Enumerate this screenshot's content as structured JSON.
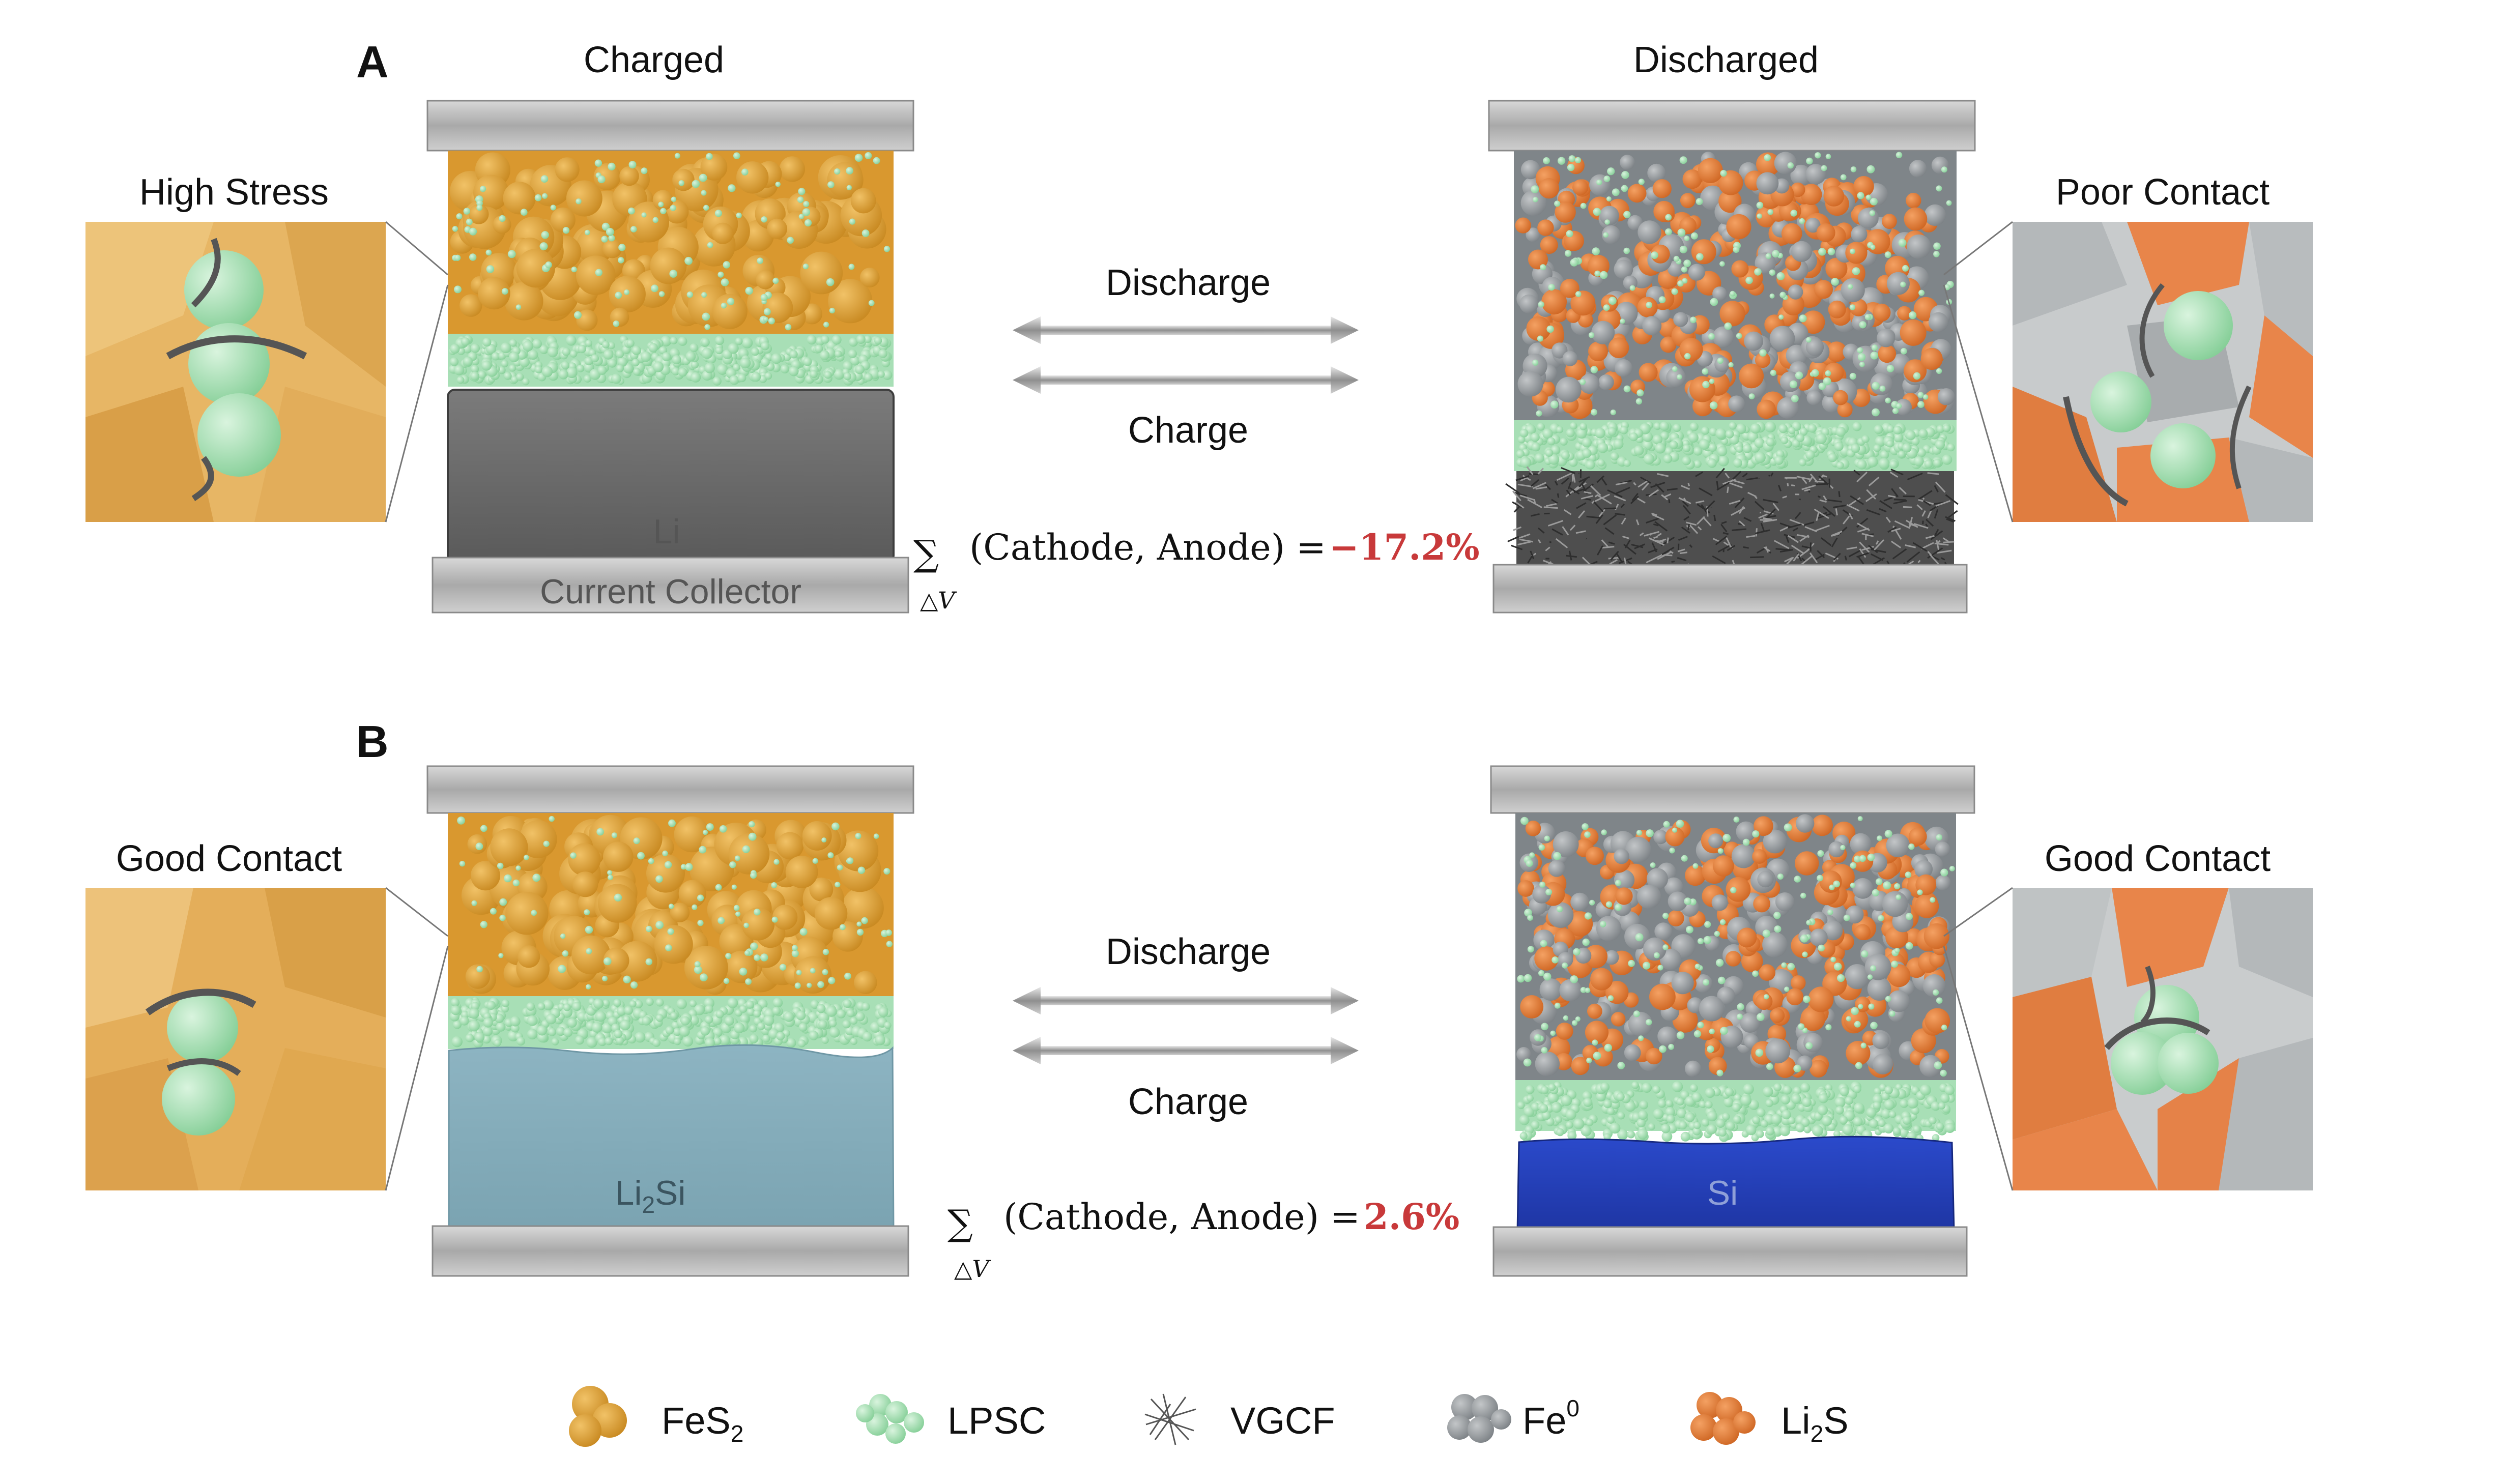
{
  "panels": [
    {
      "letter": "A",
      "left_title": "Charged",
      "right_title": "Discharged",
      "left_inset_title": "High Stress",
      "right_inset_title": "Poor Contact",
      "anode_label": "Li",
      "collector_label": "Current Collector",
      "discharge_label": "Discharge",
      "charge_label": "Charge",
      "equation": "(Cathode, Anode) = ",
      "sum_sub": "△V",
      "value": "−17.2%"
    },
    {
      "letter": "B",
      "left_title": "",
      "right_title": "",
      "left_inset_title": "Good Contact",
      "right_inset_title": "Good Contact",
      "anode_label": "Li",
      "anode_label_sub": "2",
      "anode_label_tail": "Si",
      "right_anode_label": "Si",
      "discharge_label": "Discharge",
      "charge_label": "Charge",
      "equation": "(Cathode, Anode) = ",
      "sum_sub": "△V",
      "value": "2.6%"
    }
  ],
  "legend": [
    {
      "name": "FeS",
      "sub": "2",
      "sup": "",
      "color": "#e0a43a"
    },
    {
      "name": "LPSC",
      "sub": "",
      "sup": "",
      "color": "#9fdcae"
    },
    {
      "name": "VGCF",
      "sub": "",
      "sup": "",
      "color": "#555555"
    },
    {
      "name": "Fe",
      "sub": "",
      "sup": "0",
      "color": "#8e9396"
    },
    {
      "name": "Li",
      "sub": "2",
      "sup": "",
      "tail": "S",
      "color": "#e47e3a"
    }
  ],
  "colors": {
    "fes2": "#e0a43a",
    "lpsc": "#9fdcae",
    "fe0": "#9a9fa3",
    "li2s": "#e47e3a",
    "li_metal": "#6a6a6a",
    "li2si": "#86aebc",
    "si": "#2340b8",
    "plate": "#b9b9b9",
    "highlight_red": "#c8393a"
  },
  "icons": [
    "plate-icon",
    "arrow-icon",
    "particle-icon"
  ]
}
